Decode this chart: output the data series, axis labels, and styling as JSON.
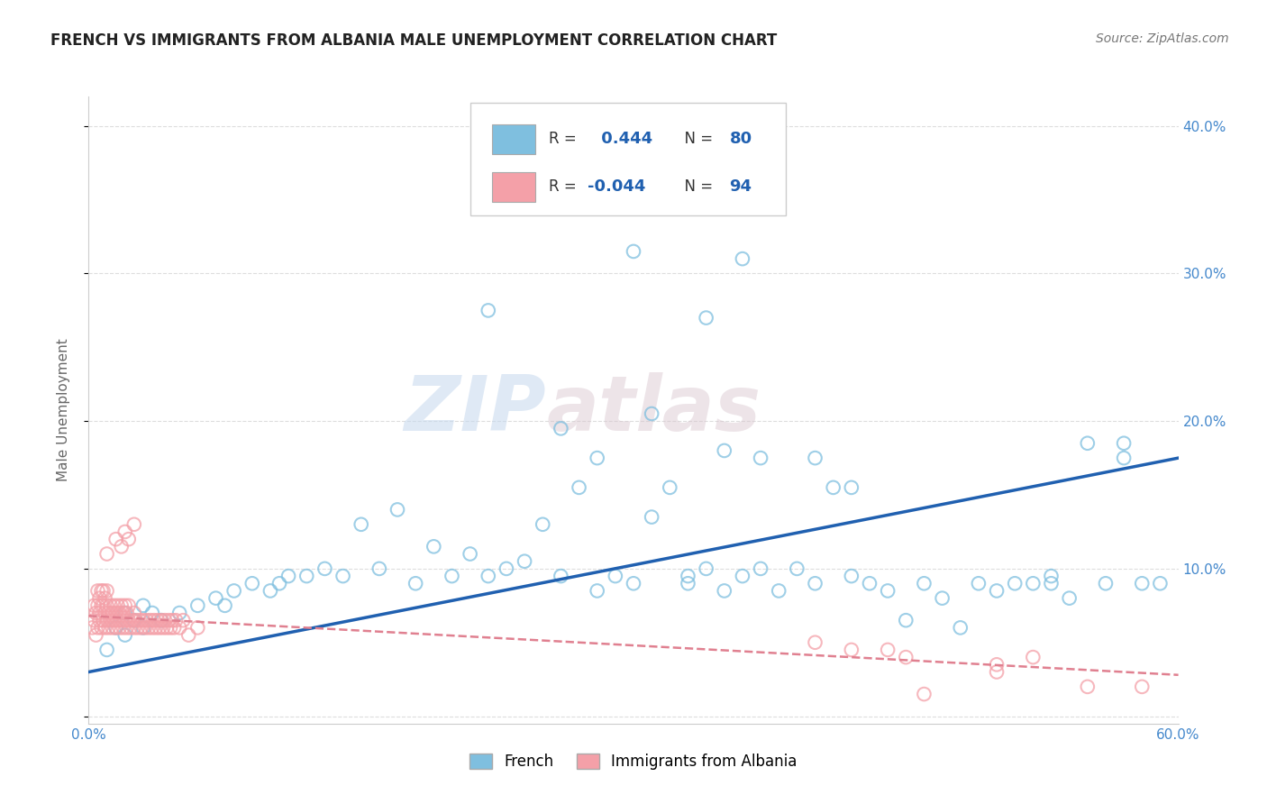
{
  "title": "FRENCH VS IMMIGRANTS FROM ALBANIA MALE UNEMPLOYMENT CORRELATION CHART",
  "source": "Source: ZipAtlas.com",
  "ylabel": "Male Unemployment",
  "xlim": [
    0.0,
    0.6
  ],
  "ylim": [
    -0.005,
    0.42
  ],
  "ytick_vals": [
    0.0,
    0.1,
    0.2,
    0.3,
    0.4
  ],
  "ytick_labels_right": [
    "",
    "10.0%",
    "20.0%",
    "30.0%",
    "40.0%"
  ],
  "xtick_vals": [
    0.0,
    0.1,
    0.2,
    0.3,
    0.4,
    0.5,
    0.6
  ],
  "xtick_labels": [
    "0.0%",
    "",
    "",
    "",
    "",
    "",
    "60.0%"
  ],
  "french_color": "#7fbfdf",
  "albania_color": "#f4a0a8",
  "trend_french_color": "#2060b0",
  "trend_albania_color": "#e08090",
  "watermark_zip": "ZIP",
  "watermark_atlas": "atlas",
  "french_trend_x0": 0.0,
  "french_trend_y0": 0.03,
  "french_trend_x1": 0.6,
  "french_trend_y1": 0.175,
  "albania_trend_x0": 0.0,
  "albania_trend_y0": 0.068,
  "albania_trend_x1": 0.6,
  "albania_trend_y1": 0.028,
  "french_x": [
    0.01,
    0.015,
    0.02,
    0.02,
    0.025,
    0.03,
    0.03,
    0.035,
    0.04,
    0.05,
    0.06,
    0.07,
    0.075,
    0.08,
    0.09,
    0.1,
    0.105,
    0.11,
    0.12,
    0.13,
    0.14,
    0.15,
    0.16,
    0.17,
    0.18,
    0.19,
    0.2,
    0.21,
    0.22,
    0.23,
    0.24,
    0.25,
    0.26,
    0.27,
    0.28,
    0.29,
    0.3,
    0.31,
    0.32,
    0.33,
    0.34,
    0.35,
    0.36,
    0.37,
    0.38,
    0.39,
    0.4,
    0.41,
    0.42,
    0.43,
    0.44,
    0.45,
    0.46,
    0.47,
    0.48,
    0.49,
    0.5,
    0.51,
    0.52,
    0.53,
    0.54,
    0.55,
    0.56,
    0.57,
    0.58,
    0.59,
    0.26,
    0.28,
    0.31,
    0.33,
    0.35,
    0.37,
    0.4,
    0.42,
    0.53,
    0.57,
    0.22,
    0.3,
    0.36,
    0.38,
    0.34
  ],
  "french_y": [
    0.045,
    0.06,
    0.055,
    0.07,
    0.065,
    0.06,
    0.075,
    0.07,
    0.065,
    0.07,
    0.075,
    0.08,
    0.075,
    0.085,
    0.09,
    0.085,
    0.09,
    0.095,
    0.095,
    0.1,
    0.095,
    0.13,
    0.1,
    0.14,
    0.09,
    0.115,
    0.095,
    0.11,
    0.095,
    0.1,
    0.105,
    0.13,
    0.095,
    0.155,
    0.085,
    0.095,
    0.09,
    0.135,
    0.155,
    0.09,
    0.1,
    0.085,
    0.095,
    0.1,
    0.085,
    0.1,
    0.09,
    0.155,
    0.095,
    0.09,
    0.085,
    0.065,
    0.09,
    0.08,
    0.06,
    0.09,
    0.085,
    0.09,
    0.09,
    0.09,
    0.08,
    0.185,
    0.09,
    0.175,
    0.09,
    0.09,
    0.195,
    0.175,
    0.205,
    0.095,
    0.18,
    0.175,
    0.175,
    0.155,
    0.095,
    0.185,
    0.275,
    0.315,
    0.31,
    0.375,
    0.27
  ],
  "albania_x": [
    0.002,
    0.003,
    0.003,
    0.004,
    0.004,
    0.005,
    0.005,
    0.005,
    0.006,
    0.006,
    0.006,
    0.007,
    0.007,
    0.007,
    0.008,
    0.008,
    0.008,
    0.009,
    0.009,
    0.009,
    0.01,
    0.01,
    0.01,
    0.011,
    0.011,
    0.012,
    0.012,
    0.013,
    0.013,
    0.014,
    0.014,
    0.015,
    0.015,
    0.016,
    0.016,
    0.017,
    0.017,
    0.018,
    0.018,
    0.019,
    0.019,
    0.02,
    0.02,
    0.021,
    0.021,
    0.022,
    0.022,
    0.023,
    0.024,
    0.025,
    0.025,
    0.026,
    0.027,
    0.028,
    0.029,
    0.03,
    0.031,
    0.032,
    0.033,
    0.034,
    0.035,
    0.036,
    0.037,
    0.038,
    0.039,
    0.04,
    0.041,
    0.042,
    0.043,
    0.044,
    0.045,
    0.046,
    0.047,
    0.048,
    0.05,
    0.052,
    0.055,
    0.06,
    0.01,
    0.015,
    0.018,
    0.02,
    0.022,
    0.025,
    0.4,
    0.44,
    0.5,
    0.55,
    0.45,
    0.5,
    0.42,
    0.52,
    0.46,
    0.58
  ],
  "albania_y": [
    0.06,
    0.065,
    0.075,
    0.055,
    0.07,
    0.06,
    0.075,
    0.085,
    0.065,
    0.07,
    0.08,
    0.06,
    0.075,
    0.085,
    0.065,
    0.075,
    0.085,
    0.06,
    0.07,
    0.08,
    0.065,
    0.075,
    0.085,
    0.06,
    0.07,
    0.065,
    0.075,
    0.06,
    0.07,
    0.065,
    0.075,
    0.06,
    0.07,
    0.065,
    0.075,
    0.06,
    0.07,
    0.065,
    0.075,
    0.06,
    0.07,
    0.065,
    0.075,
    0.06,
    0.07,
    0.065,
    0.075,
    0.06,
    0.065,
    0.06,
    0.07,
    0.065,
    0.06,
    0.065,
    0.06,
    0.065,
    0.06,
    0.065,
    0.06,
    0.065,
    0.06,
    0.065,
    0.06,
    0.065,
    0.06,
    0.065,
    0.06,
    0.065,
    0.06,
    0.065,
    0.06,
    0.065,
    0.06,
    0.065,
    0.06,
    0.065,
    0.055,
    0.06,
    0.11,
    0.12,
    0.115,
    0.125,
    0.12,
    0.13,
    0.05,
    0.045,
    0.03,
    0.02,
    0.04,
    0.035,
    0.045,
    0.04,
    0.015,
    0.02
  ]
}
